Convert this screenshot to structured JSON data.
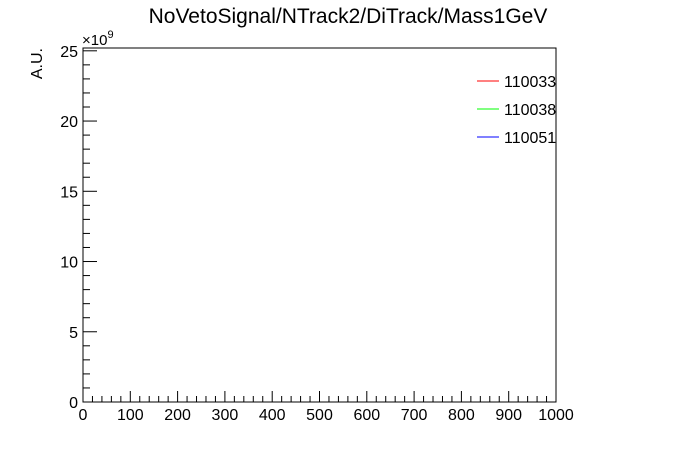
{
  "chart_data": {
    "type": "line",
    "title": "NoVetoSignal/NTrack2/DiTrack/Mass1GeV",
    "xlabel": "",
    "ylabel": "A.U.",
    "y_multiplier_label": "×10",
    "y_multiplier_exponent": "9",
    "xlim": [
      0,
      1000
    ],
    "ylim": [
      0,
      25.2
    ],
    "x_ticks": [
      0,
      100,
      200,
      300,
      400,
      500,
      600,
      700,
      800,
      900,
      1000
    ],
    "x_tick_labels": [
      "0",
      "100",
      "200",
      "300",
      "400",
      "500",
      "600",
      "700",
      "800",
      "900",
      "1000"
    ],
    "y_ticks": [
      0,
      5,
      10,
      15,
      20,
      25
    ],
    "y_tick_labels": [
      "0",
      "5",
      "10",
      "15",
      "20",
      "25"
    ],
    "grid": false,
    "legend_position": "top-right",
    "series": [
      {
        "name": "110033",
        "color": "#ff0000",
        "x": [],
        "y": []
      },
      {
        "name": "110038",
        "color": "#00ff00",
        "x": [],
        "y": []
      },
      {
        "name": "110051",
        "color": "#0000ff",
        "x": [],
        "y": []
      }
    ]
  }
}
